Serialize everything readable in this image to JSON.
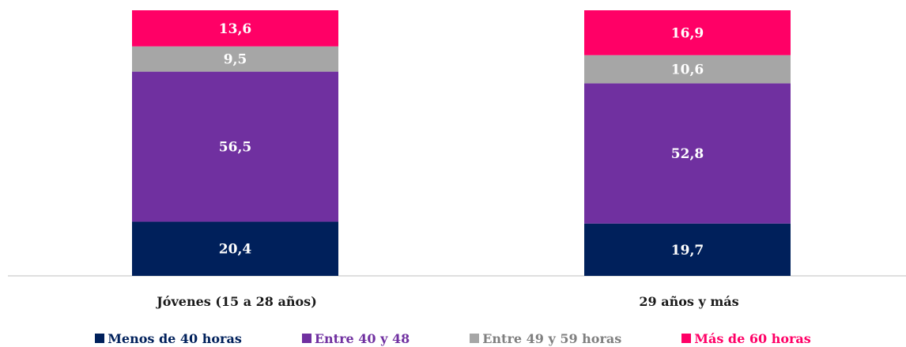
{
  "chart_data": {
    "type": "bar",
    "stacked": true,
    "categories": [
      "Jóvenes (15 a 28 años)",
      "29 años y más"
    ],
    "series": [
      {
        "name": "Menos de 40 horas",
        "color": "#00205b",
        "values": [
          20.4,
          19.7
        ],
        "labels": [
          "20,4",
          "19,7"
        ]
      },
      {
        "name": "Entre 40 y 48",
        "color": "#7030a0",
        "values": [
          56.5,
          52.8
        ],
        "labels": [
          "56,5",
          "52,8"
        ]
      },
      {
        "name": "Entre 49 y 59 horas",
        "color": "#a6a6a6",
        "values": [
          9.5,
          10.6
        ],
        "labels": [
          "9,5",
          "10,6"
        ]
      },
      {
        "name": "Más de 60 horas",
        "color": "#ff0066",
        "values": [
          13.6,
          16.9
        ],
        "labels": [
          "13,6",
          "16,9"
        ]
      }
    ],
    "title": "",
    "xlabel": "",
    "ylabel": "",
    "ylim": [
      0,
      100
    ],
    "grid": false,
    "legend_position": "bottom"
  }
}
